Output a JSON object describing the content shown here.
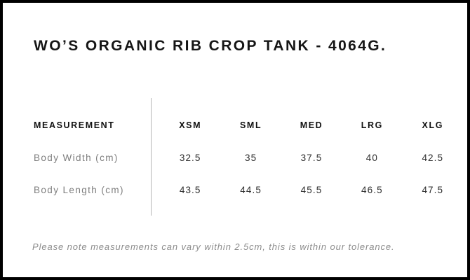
{
  "title": "WO’S ORGANIC RIB CROP TANK - 4064G.",
  "table": {
    "header": [
      "MEASUREMENT",
      "XSM",
      "SML",
      "MED",
      "LRG",
      "XLG"
    ],
    "rows": [
      {
        "label": "Body Width (cm)",
        "values": [
          "32.5",
          "35",
          "37.5",
          "40",
          "42.5"
        ]
      },
      {
        "label": "Body Length (cm)",
        "values": [
          "43.5",
          "44.5",
          "45.5",
          "46.5",
          "47.5"
        ]
      }
    ]
  },
  "note": "Please note measurements can vary within 2.5cm, this is within our tolerance.",
  "colors": {
    "border": "#000000",
    "title_text": "#151515",
    "header_text": "#111111",
    "row_label_text": "#7e7e7e",
    "value_text": "#2d2d2d",
    "note_text": "#8c8c8c",
    "divider": "#b5b5b5",
    "background": "#ffffff"
  }
}
